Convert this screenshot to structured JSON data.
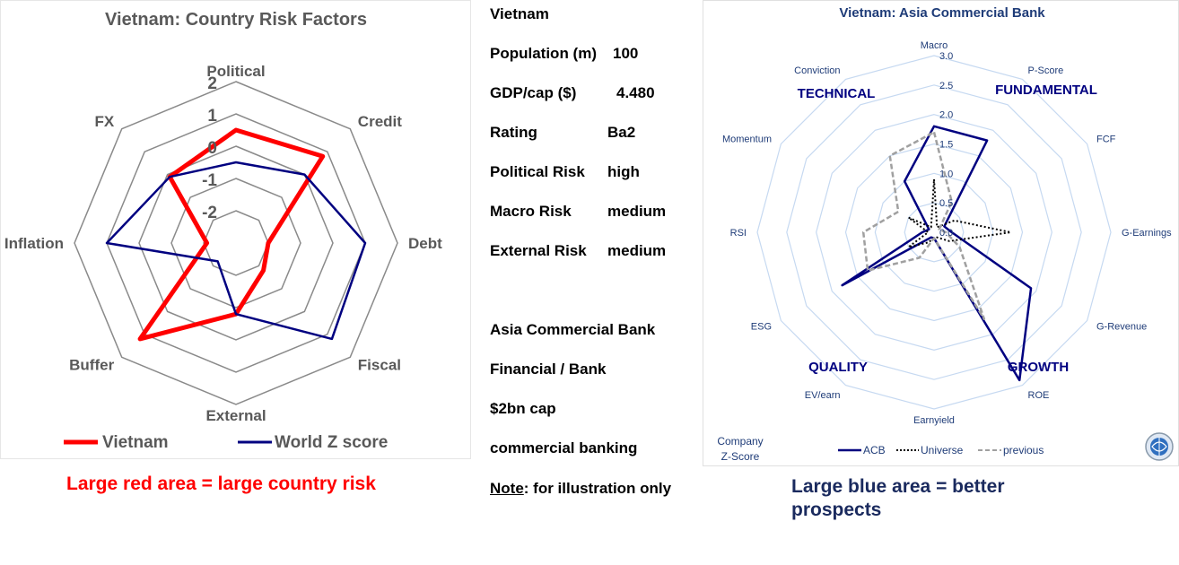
{
  "chart_data": [
    {
      "type": "radar",
      "title": "Vietnam: Country Risk Factors",
      "axes": [
        "Political",
        "Credit",
        "Debt",
        "Fiscal",
        "External",
        "Buffer",
        "Inflation",
        "FX"
      ],
      "range": [
        -3,
        2
      ],
      "tick_labels": [
        "2",
        "1",
        "0",
        "-1",
        "-2"
      ],
      "tick_values": [
        2,
        1,
        0,
        -1,
        -2
      ],
      "grid": true,
      "legend_position": "bottom",
      "series": [
        {
          "name": "Vietnam",
          "color": "#ff0000",
          "values": [
            0.5,
            0.8,
            -2.0,
            -1.8,
            -0.8,
            1.2,
            -2.1,
            -0.1
          ]
        },
        {
          "name": "World Z score",
          "color": "#000080",
          "values": [
            -0.5,
            0.0,
            1.0,
            1.2,
            -0.8,
            -2.2,
            1.0,
            -0.1
          ]
        }
      ]
    },
    {
      "type": "radar",
      "title": "Vietnam: Asia Commercial Bank",
      "axes": [
        "Macro",
        "P-Score",
        "FCF",
        "G-Earnings",
        "G-Revenue",
        "ROE",
        "Earnyield",
        "EV/earn",
        "ESG",
        "RSI",
        "Momentum",
        "Conviction"
      ],
      "range": [
        0,
        3
      ],
      "tick_labels": [
        "3.0",
        "2.5",
        "2.0",
        "1.5",
        "1.0",
        "0.5",
        "0.0"
      ],
      "tick_values": [
        3.0,
        2.5,
        2.0,
        1.5,
        1.0,
        0.5,
        0.0
      ],
      "grid": true,
      "legend_position": "bottom",
      "groups": [
        "TECHNICAL",
        "FUNDAMENTAL",
        "QUALITY",
        "GROWTH"
      ],
      "corner_label": [
        "Company",
        "Z-Score"
      ],
      "series": [
        {
          "name": "ACB",
          "color": "#000080",
          "dash": "solid",
          "values": [
            1.8,
            1.8,
            0.2,
            0.3,
            1.9,
            2.9,
            0.1,
            0.1,
            1.8,
            0.2,
            0.1,
            1.0
          ]
        },
        {
          "name": "Universe",
          "color": "#000000",
          "dash": "dotted",
          "values": [
            0.9,
            0.1,
            0.4,
            1.3,
            0.3,
            0.1,
            0.1,
            0.2,
            0.5,
            0.1,
            0.5,
            0.1
          ]
        },
        {
          "name": "previous",
          "color": "#a0a0a0",
          "dash": "dashed",
          "values": [
            1.7,
            0.6,
            0.1,
            0.2,
            0.5,
            1.7,
            0.1,
            0.5,
            1.3,
            1.2,
            0.7,
            1.5
          ]
        }
      ]
    }
  ],
  "info": {
    "country": "Vietnam",
    "rows": [
      {
        "label": "Population (m)",
        "value": "100"
      },
      {
        "label": "GDP/cap ($)",
        "value": "4.480"
      },
      {
        "label": "Rating",
        "value": "Ba2"
      },
      {
        "label": "Political Risk",
        "value": "high"
      },
      {
        "label": "Macro Risk",
        "value": "medium"
      },
      {
        "label": "External Risk",
        "value": "medium"
      }
    ],
    "company": "Asia Commercial Bank",
    "sector": "Financial / Bank",
    "cap": "$2bn cap",
    "business": "commercial banking",
    "note_label": "Note",
    "note_text": ": for illustration only"
  },
  "captions": {
    "left": "Large red area = large country risk",
    "right": "Large blue area = better prospects"
  },
  "colors": {
    "red": "#ff0000",
    "navy": "#000080",
    "grid_left": "#808080",
    "grid_right": "#c6d9f1",
    "caption_right": "#1a2a5e"
  }
}
